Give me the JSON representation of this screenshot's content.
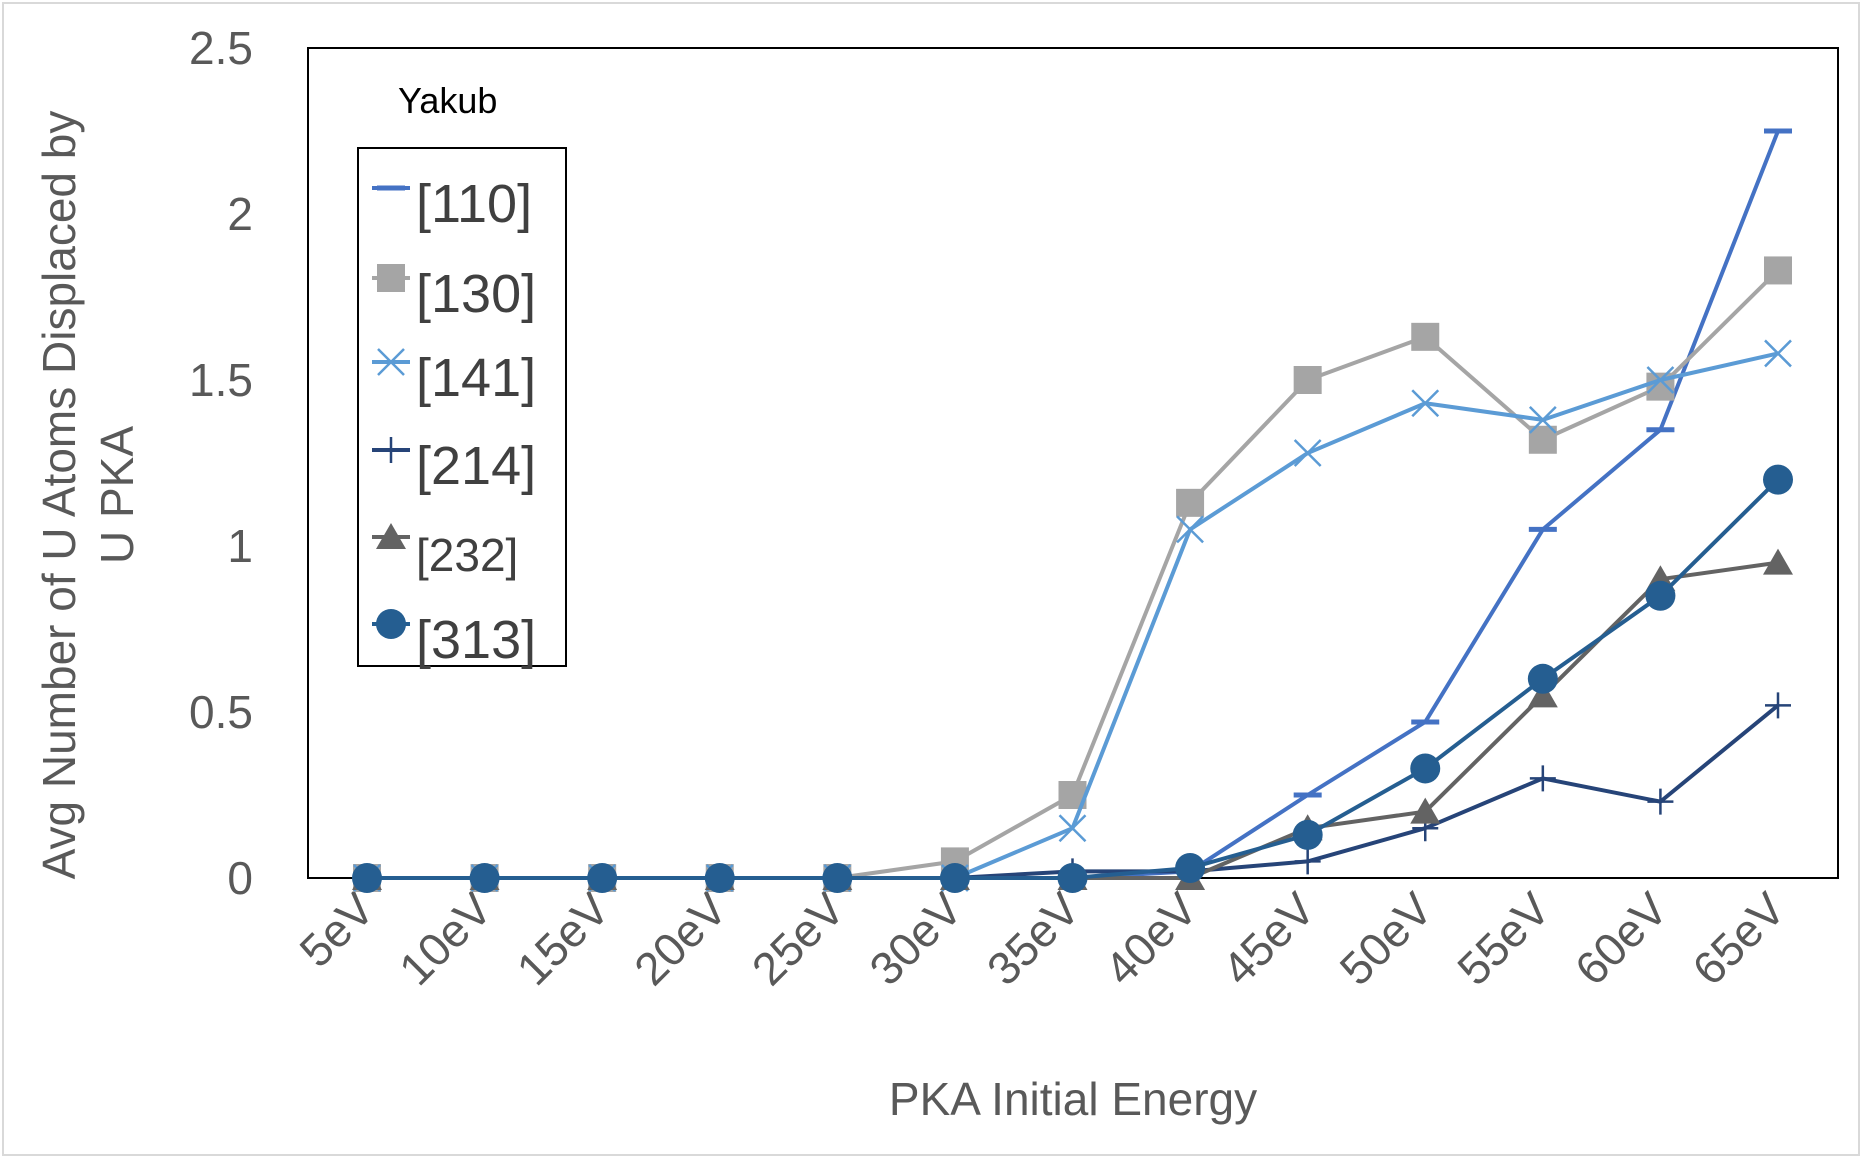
{
  "chart_data": {
    "type": "line",
    "title": "",
    "xlabel": "PKA Initial Energy",
    "ylabel": "Avg Number of U Atoms Displaced by U PKA",
    "ylabel_lines": [
      "Avg Number of U Atoms Displaced by",
      "U PKA"
    ],
    "categories": [
      "5eV",
      "10eV",
      "15eV",
      "20eV",
      "25eV",
      "30eV",
      "35eV",
      "40eV",
      "45eV",
      "50eV",
      "55eV",
      "60eV",
      "65eV"
    ],
    "ylim": [
      0,
      2.5
    ],
    "yticks": [
      "0",
      "0.5",
      "1",
      "1.5",
      "2",
      "2.5"
    ],
    "grid": false,
    "legend": {
      "title": "Yakub",
      "placement": "top-left"
    },
    "series": [
      {
        "name": "[110]",
        "marker": "dash",
        "color": "#4472c4",
        "values": [
          0,
          0,
          0,
          0,
          0,
          0,
          0,
          0.02,
          0.25,
          0.47,
          1.05,
          1.35,
          2.25
        ]
      },
      {
        "name": "[130]",
        "marker": "square",
        "color": "#a5a5a5",
        "values": [
          0,
          0,
          0,
          0,
          0,
          0.05,
          0.25,
          1.13,
          1.5,
          1.63,
          1.32,
          1.48,
          1.83
        ]
      },
      {
        "name": "[141]",
        "marker": "x",
        "color": "#5b9bd5",
        "values": [
          0,
          0,
          0,
          0,
          0,
          0,
          0.15,
          1.05,
          1.28,
          1.43,
          1.38,
          1.5,
          1.58
        ]
      },
      {
        "name": "[214]",
        "marker": "plus",
        "color": "#264478",
        "values": [
          0,
          0,
          0,
          0,
          0,
          0,
          0.02,
          0.02,
          0.05,
          0.15,
          0.3,
          0.23,
          0.52
        ]
      },
      {
        "name": "[232]",
        "marker": "triangle",
        "color": "#636363",
        "values": [
          0,
          0,
          0,
          0,
          0,
          0,
          0,
          0,
          0.15,
          0.2,
          0.55,
          0.9,
          0.95
        ]
      },
      {
        "name": "[313]",
        "marker": "circle",
        "color": "#255e91",
        "values": [
          0,
          0,
          0,
          0,
          0,
          0,
          0,
          0.03,
          0.13,
          0.33,
          0.6,
          0.85,
          1.2
        ]
      }
    ]
  }
}
